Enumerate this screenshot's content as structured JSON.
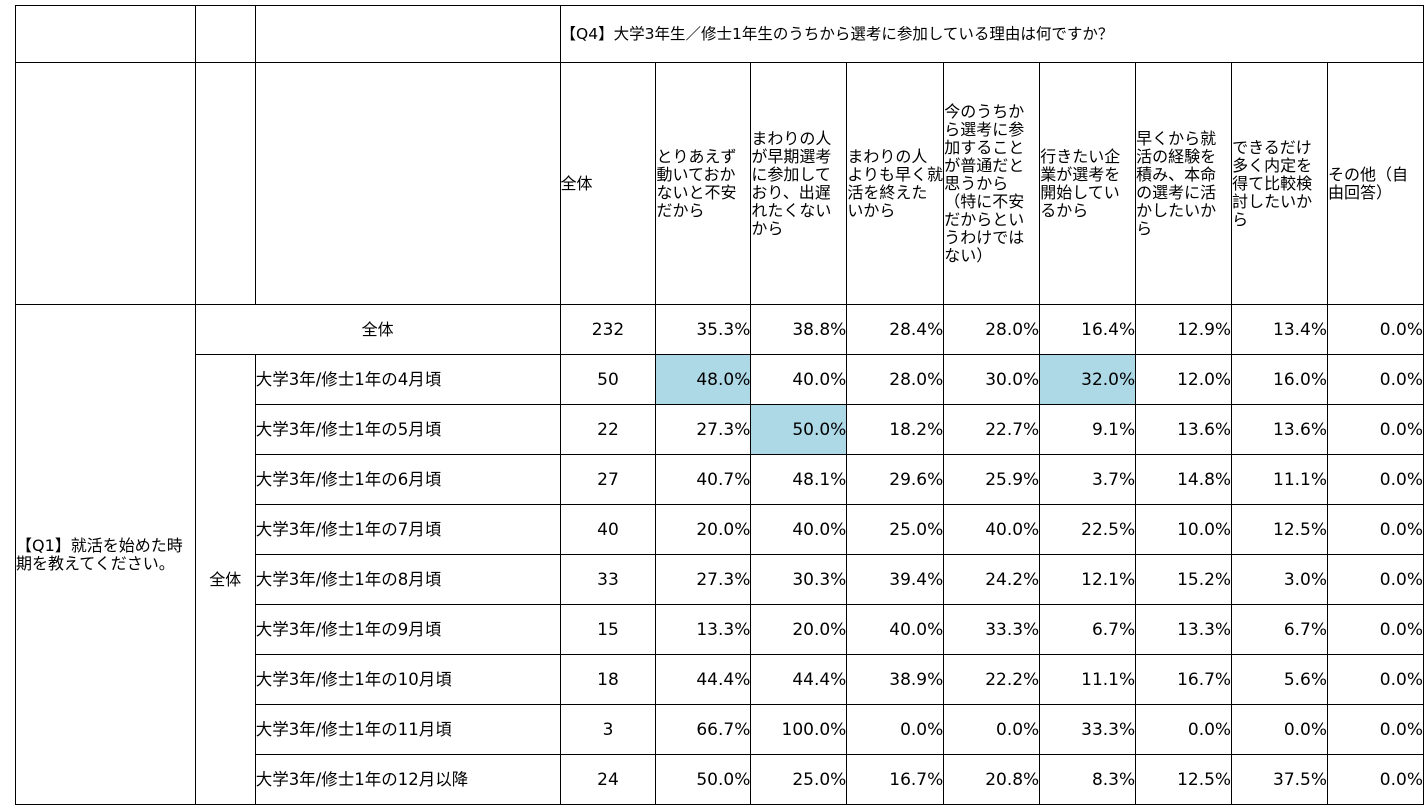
{
  "q4_title": "【Q4】大学3年生／修士1年生のうちから選考に参加している理由は何ですか？",
  "q1_title": "【Q1】就活を始めた時期を教えてください。",
  "total_label": "全体",
  "group_label": "全体",
  "columns": [
    "全体",
    "とりあえず動いておかないと不安だから",
    "まわりの人が早期選考に参加しており、出遅れたくないから",
    "まわりの人よりも早く就活を終えたいから",
    "今のうちから選考に参加することが普通だと思うから（特に不安だからというわけではない）",
    "行きたい企業が選考を開始しているから",
    "早くから就活の経験を積み、本命の選考に活かしたいから",
    "できるだけ多く内定を得て比較検討したいから",
    "その他（自由回答）"
  ],
  "total_row": {
    "n": "232",
    "values": [
      "35.3%",
      "38.8%",
      "28.4%",
      "28.0%",
      "16.4%",
      "12.9%",
      "13.4%",
      "0.0%"
    ]
  },
  "rows": [
    {
      "label": "大学3年/修士1年の4月頃",
      "n": "50",
      "values": [
        "48.0%",
        "40.0%",
        "28.0%",
        "30.0%",
        "32.0%",
        "12.0%",
        "16.0%",
        "0.0%"
      ],
      "highlight": [
        0,
        4
      ]
    },
    {
      "label": "大学3年/修士1年の5月頃",
      "n": "22",
      "values": [
        "27.3%",
        "50.0%",
        "18.2%",
        "22.7%",
        "9.1%",
        "13.6%",
        "13.6%",
        "0.0%"
      ],
      "highlight": [
        1
      ]
    },
    {
      "label": "大学3年/修士1年の6月頃",
      "n": "27",
      "values": [
        "40.7%",
        "48.1%",
        "29.6%",
        "25.9%",
        "3.7%",
        "14.8%",
        "11.1%",
        "0.0%"
      ],
      "highlight": []
    },
    {
      "label": "大学3年/修士1年の7月頃",
      "n": "40",
      "values": [
        "20.0%",
        "40.0%",
        "25.0%",
        "40.0%",
        "22.5%",
        "10.0%",
        "12.5%",
        "0.0%"
      ],
      "highlight": []
    },
    {
      "label": "大学3年/修士1年の8月頃",
      "n": "33",
      "values": [
        "27.3%",
        "30.3%",
        "39.4%",
        "24.2%",
        "12.1%",
        "15.2%",
        "3.0%",
        "0.0%"
      ],
      "highlight": []
    },
    {
      "label": "大学3年/修士1年の9月頃",
      "n": "15",
      "values": [
        "13.3%",
        "20.0%",
        "40.0%",
        "33.3%",
        "6.7%",
        "13.3%",
        "6.7%",
        "0.0%"
      ],
      "highlight": []
    },
    {
      "label": "大学3年/修士1年の10月頃",
      "n": "18",
      "values": [
        "44.4%",
        "44.4%",
        "38.9%",
        "22.2%",
        "11.1%",
        "16.7%",
        "5.6%",
        "0.0%"
      ],
      "highlight": []
    },
    {
      "label": "大学3年/修士1年の11月頃",
      "n": "3",
      "values": [
        "66.7%",
        "100.0%",
        "0.0%",
        "0.0%",
        "33.3%",
        "0.0%",
        "0.0%",
        "0.0%"
      ],
      "highlight": []
    },
    {
      "label": "大学3年/修士1年の12月以降",
      "n": "24",
      "values": [
        "50.0%",
        "25.0%",
        "16.7%",
        "20.8%",
        "8.3%",
        "12.5%",
        "37.5%",
        "0.0%"
      ],
      "highlight": []
    }
  ],
  "colors": {
    "highlight": "#add8e6",
    "border": "#000000"
  }
}
